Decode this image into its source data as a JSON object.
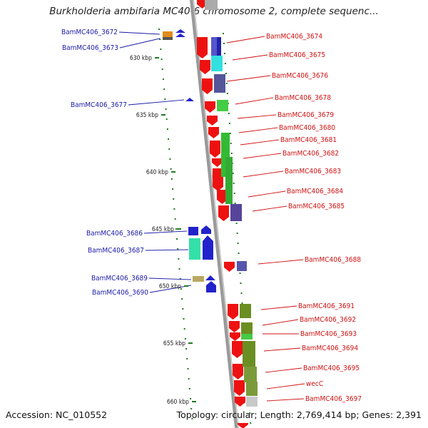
{
  "title": "Burkholderia ambifaria MC40-6 chromosome 2, complete sequenc...",
  "footer": {
    "accession": "Accession: NC_010552",
    "summary": "Topology: circular; Length: 2,769,414 bp; Genes: 2,391"
  },
  "colors": {
    "red_gene": "#ee1111",
    "backbone": "#9a9a9a",
    "left_label": "#1a1aa8",
    "right_label": "#d11010",
    "green_dots": "#1e7a1e"
  },
  "kbp_ticks": [
    "630 kbp",
    "635 kbp",
    "640 kbp",
    "645 kbp",
    "650 kbp",
    "655 kbp",
    "660 kbp"
  ],
  "left_labels": [
    "BamMC406_3672",
    "BamMC406_3673",
    "BamMC406_3677",
    "BamMC406_3686",
    "BamMC406_3687",
    "BamMC406_3689",
    "BamMC406_3690"
  ],
  "right_labels": [
    "BamMC406_3674",
    "BamMC406_3675",
    "BamMC406_3676",
    "BamMC406_3678",
    "BamMC406_3679",
    "BamMC406_3680",
    "BamMC406_3681",
    "BamMC406_3682",
    "BamMC406_3683",
    "BamMC406_3684",
    "BamMC406_3685",
    "BamMC406_3688",
    "BamMC406_3691",
    "BamMC406_3692",
    "BamMC406_3693",
    "BamMC406_3694",
    "BamMC406_3695",
    "wecC",
    "BamMC406_3697"
  ]
}
